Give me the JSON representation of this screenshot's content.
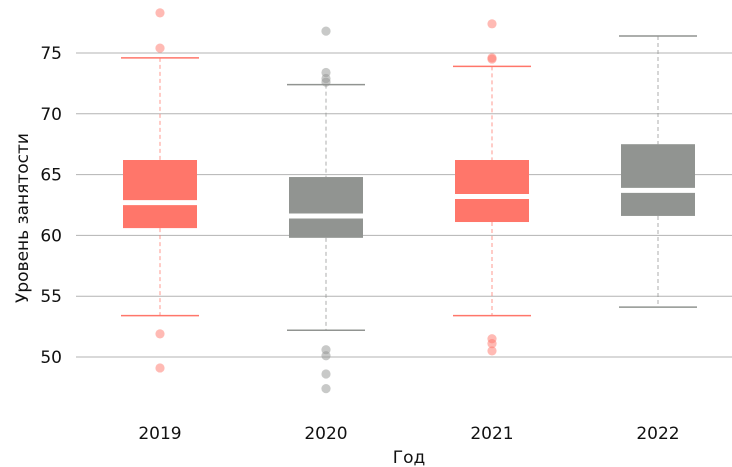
{
  "chart_data": {
    "type": "boxplot",
    "xlabel": "Год",
    "ylabel": "Уровень занятости",
    "categories": [
      "2019",
      "2020",
      "2021",
      "2022"
    ],
    "ylim": [
      45.5,
      79
    ],
    "yticks": [
      50,
      55,
      60,
      65,
      70,
      75
    ],
    "grid": "horizontal",
    "colors": [
      "#ff766a",
      "#919491",
      "#ff766a",
      "#919491"
    ],
    "boxes": [
      {
        "category": "2019",
        "whisker_low": 53.4,
        "q1": 60.6,
        "median": 62.7,
        "q3": 66.2,
        "whisker_high": 74.6,
        "outliers": [
          78.3,
          75.4,
          51.9,
          49.1
        ]
      },
      {
        "category": "2020",
        "whisker_low": 52.2,
        "q1": 59.8,
        "median": 61.6,
        "q3": 64.8,
        "whisker_high": 72.4,
        "outliers": [
          76.8,
          73.4,
          72.9,
          72.6,
          50.6,
          50.1,
          48.6,
          47.4
        ]
      },
      {
        "category": "2021",
        "whisker_low": 53.4,
        "q1": 61.1,
        "median": 63.2,
        "q3": 66.2,
        "whisker_high": 73.9,
        "outliers": [
          77.4,
          74.6,
          74.5,
          51.5,
          51.1,
          50.5
        ]
      },
      {
        "category": "2022",
        "whisker_low": 54.1,
        "q1": 61.6,
        "median": 63.7,
        "q3": 67.5,
        "whisker_high": 76.4,
        "outliers": []
      }
    ]
  }
}
